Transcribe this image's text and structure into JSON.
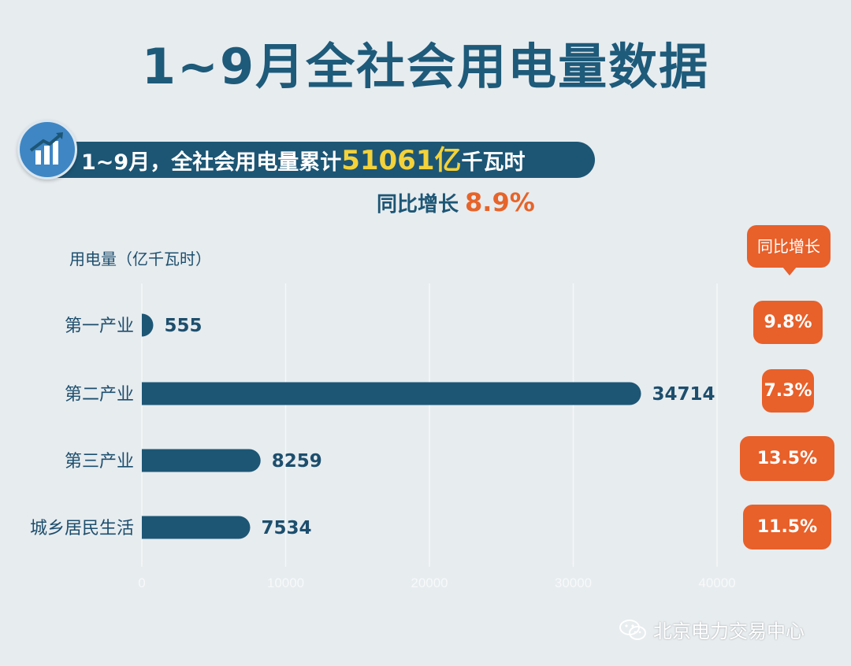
{
  "title": "1~9月全社会用电量数据",
  "summary": {
    "prefix": "1~9月，全社会用电量累计",
    "highlight": "51061亿",
    "suffix": "千瓦时",
    "yoy_label": "同比增长",
    "yoy_value": "8.9%"
  },
  "unit_label": "用电量（亿千瓦时）",
  "yoy_header": "同比增长",
  "watermark": "北京电力交易中心",
  "colors": {
    "bar": "#1d5675",
    "accent": "#e8602a",
    "highlight": "#f3d23a"
  },
  "chart_data": {
    "type": "bar",
    "orientation": "horizontal",
    "categories": [
      "第一产业",
      "第二产业",
      "第三产业",
      "城乡居民生活"
    ],
    "values": [
      555,
      34714,
      8259,
      7534
    ],
    "yoy_growth": [
      "9.8%",
      "7.3%",
      "13.5%",
      "11.5%"
    ],
    "xlim": [
      0,
      40000
    ],
    "xticks": [
      "0",
      "10000",
      "20000",
      "30000",
      "40000"
    ],
    "ylabel": "用电量（亿千瓦时）",
    "grid": true
  }
}
